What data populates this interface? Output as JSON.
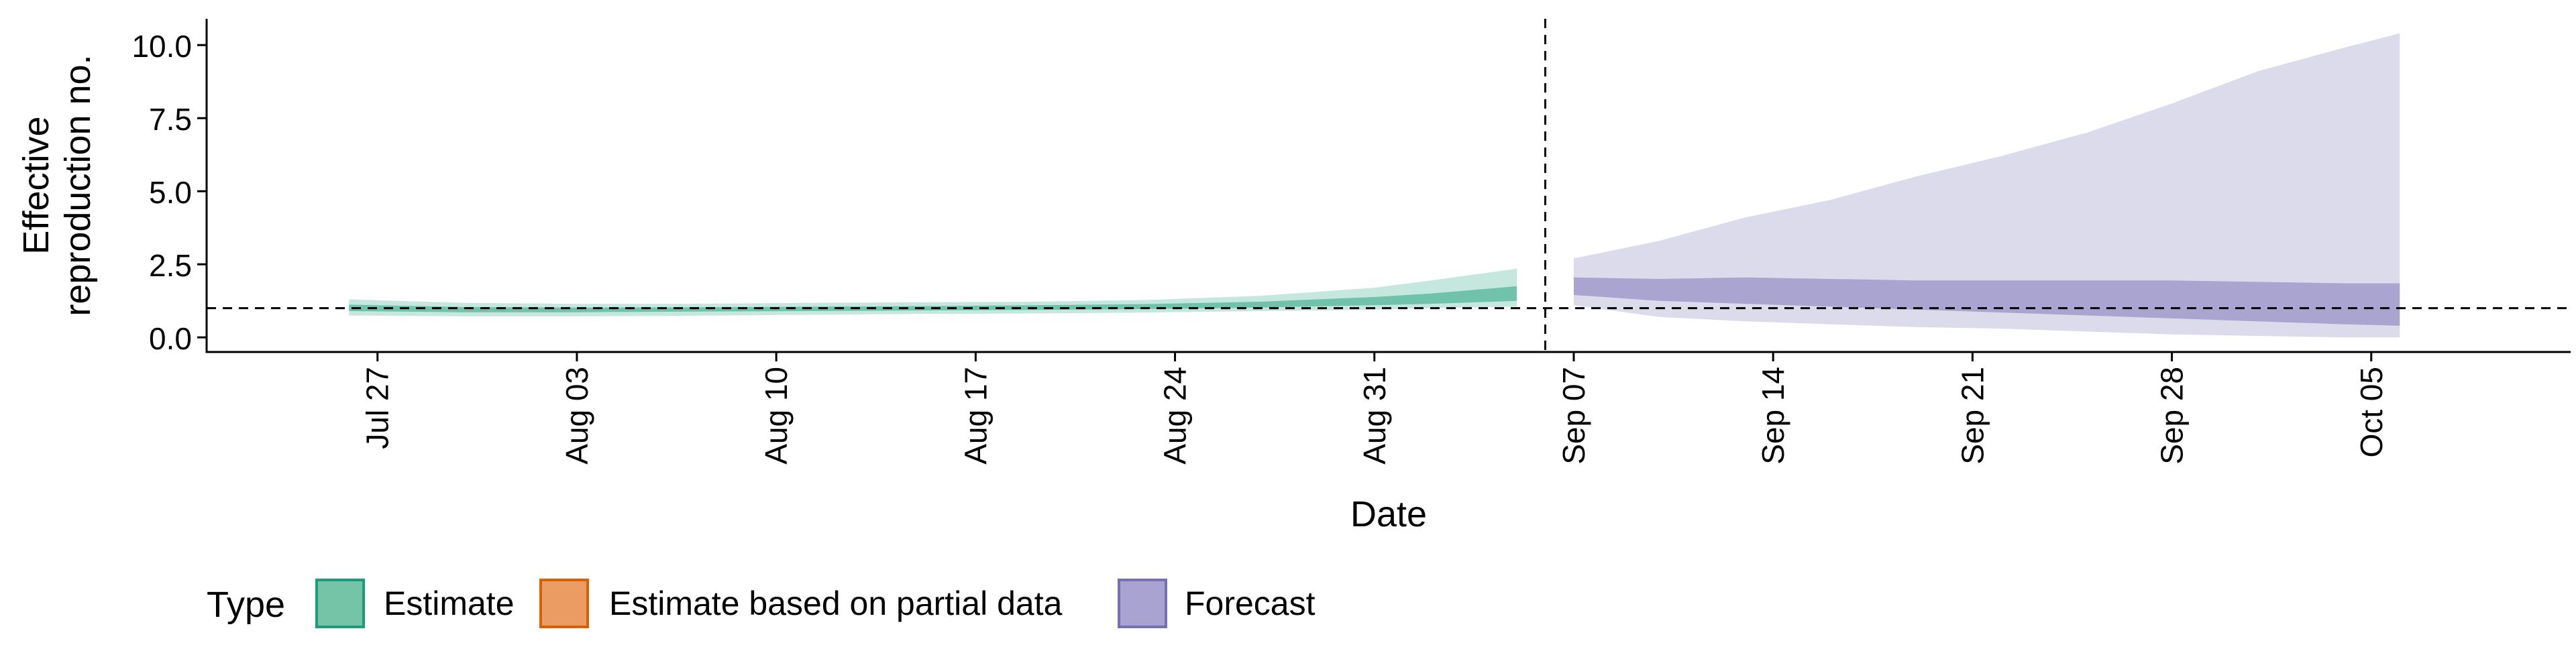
{
  "chart_data": {
    "type": "area",
    "title": "",
    "xlabel": "Date",
    "ylabel_lines": [
      "Effective",
      "reproduction no."
    ],
    "x_tick_labels": [
      "Jul 27",
      "Aug 03",
      "Aug 10",
      "Aug 17",
      "Aug 24",
      "Aug 31",
      "Sep 07",
      "Sep 14",
      "Sep 21",
      "Sep 28",
      "Oct 05"
    ],
    "x_tick_dates": [
      "2020-07-27",
      "2020-08-03",
      "2020-08-10",
      "2020-08-17",
      "2020-08-24",
      "2020-08-31",
      "2020-09-07",
      "2020-09-14",
      "2020-09-21",
      "2020-09-28",
      "2020-10-05"
    ],
    "xlim": [
      "2020-07-21",
      "2020-10-12"
    ],
    "y_ticks": [
      0.0,
      2.5,
      5.0,
      7.5,
      10.0
    ],
    "y_tick_labels": [
      "0.0",
      "2.5",
      "5.0",
      "7.5",
      "10.0"
    ],
    "ylim": [
      -0.5,
      10.9
    ],
    "reference_line_y": 1,
    "forecast_start_line_x": "2020-09-06",
    "legend": {
      "title": "Type",
      "position": "bottom",
      "items": [
        {
          "label": "Estimate",
          "fill": "#76c4a8",
          "stroke": "#1b9e77"
        },
        {
          "label": "Estimate based on partial data",
          "fill": "#ea9c63",
          "stroke": "#d95f02"
        },
        {
          "label": "Forecast",
          "fill": "#a9a3d2",
          "stroke": "#7570b3"
        }
      ]
    },
    "series": [
      {
        "name": "Estimate",
        "color": "#1b9e77",
        "x": [
          "2020-07-26",
          "2020-07-30",
          "2020-08-03",
          "2020-08-07",
          "2020-08-11",
          "2020-08-15",
          "2020-08-19",
          "2020-08-23",
          "2020-08-27",
          "2020-08-31",
          "2020-09-02",
          "2020-09-05"
        ],
        "outer_lower": [
          0.75,
          0.72,
          0.72,
          0.74,
          0.77,
          0.8,
          0.82,
          0.85,
          0.9,
          0.95,
          1.0,
          1.05
        ],
        "outer_upper": [
          1.3,
          1.18,
          1.15,
          1.15,
          1.18,
          1.2,
          1.22,
          1.28,
          1.42,
          1.7,
          1.95,
          2.35
        ],
        "inner_lower": [
          0.9,
          0.86,
          0.86,
          0.88,
          0.9,
          0.92,
          0.94,
          0.97,
          1.02,
          1.1,
          1.15,
          1.25
        ],
        "inner_upper": [
          1.12,
          1.04,
          1.02,
          1.03,
          1.05,
          1.07,
          1.1,
          1.14,
          1.22,
          1.38,
          1.5,
          1.75
        ]
      },
      {
        "name": "Forecast",
        "color": "#7570b3",
        "x": [
          "2020-09-07",
          "2020-09-10",
          "2020-09-13",
          "2020-09-16",
          "2020-09-19",
          "2020-09-22",
          "2020-09-25",
          "2020-09-28",
          "2020-10-01",
          "2020-10-04",
          "2020-10-06"
        ],
        "outer_lower": [
          1.1,
          0.7,
          0.55,
          0.45,
          0.35,
          0.3,
          0.2,
          0.1,
          0.05,
          0.0,
          0.0
        ],
        "outer_upper": [
          2.7,
          3.3,
          4.1,
          4.7,
          5.5,
          6.2,
          7.0,
          8.0,
          9.1,
          9.9,
          10.4
        ],
        "inner_lower": [
          1.45,
          1.25,
          1.15,
          1.05,
          0.95,
          0.85,
          0.75,
          0.65,
          0.55,
          0.45,
          0.4
        ],
        "inner_upper": [
          2.05,
          2.0,
          2.05,
          2.0,
          1.95,
          1.95,
          1.95,
          1.95,
          1.9,
          1.85,
          1.85
        ]
      }
    ]
  }
}
